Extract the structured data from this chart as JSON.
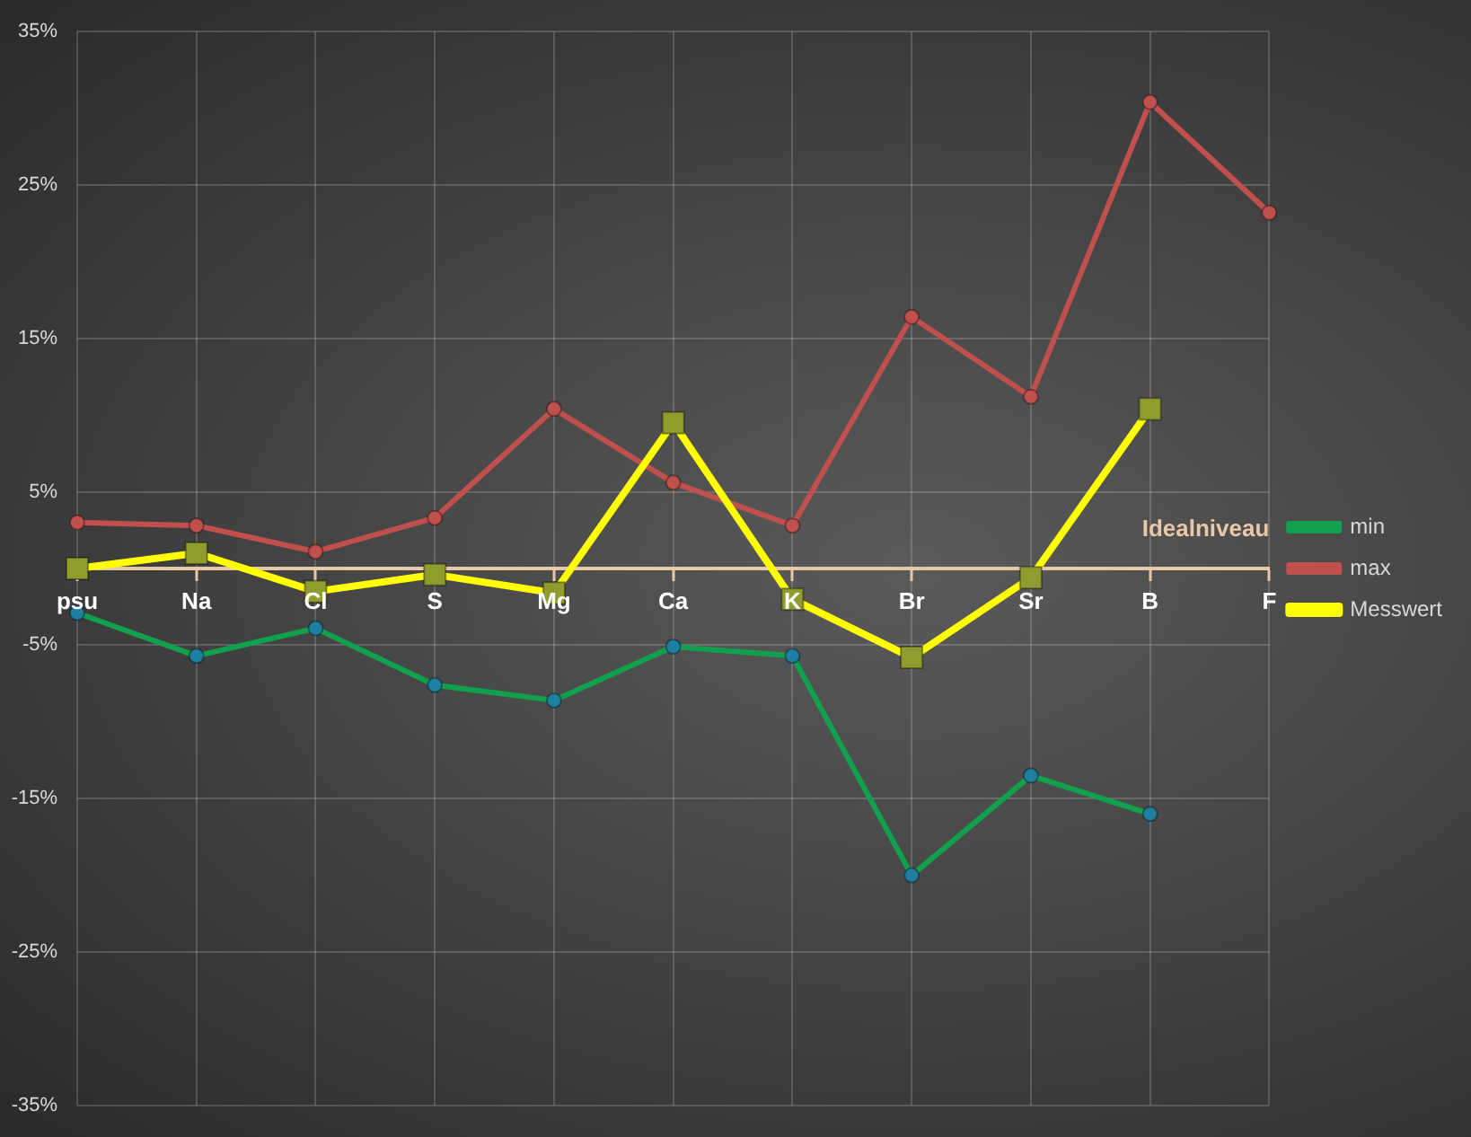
{
  "chart_data": {
    "type": "line",
    "categories": [
      "psu",
      "Na",
      "Cl",
      "S",
      "Mg",
      "Ca",
      "K",
      "Br",
      "Sr",
      "B",
      "F"
    ],
    "series": [
      {
        "name": "min",
        "color": "#11a04e",
        "marker": "circle",
        "colors": [
          "#1f7fa0",
          "#1f7fa0",
          "#1f7fa0",
          "#1f7fa0",
          "#1f7fa0",
          "#1f7fa0",
          "#1f7fa0",
          "#1f7fa0",
          "#1f7fa0",
          "#1f7fa0",
          "#1f7fa0"
        ],
        "values": [
          -2.9,
          -5.7,
          -3.9,
          -7.6,
          -8.6,
          -5.1,
          -5.7,
          -20.0,
          -13.5,
          -16.0,
          null
        ]
      },
      {
        "name": "max",
        "color": "#c0504d",
        "marker": "circle",
        "values": [
          3.0,
          2.8,
          1.1,
          3.3,
          10.4,
          5.6,
          2.8,
          16.4,
          11.2,
          30.4,
          23.2
        ]
      },
      {
        "name": "Messwert",
        "color": "#ffff00",
        "marker": "square",
        "colors": [
          "#8f9c2e",
          "#8f9c2e",
          "#8f9c2e",
          "#8f9c2e",
          "#8f9c2e",
          "#8f9c2e",
          "#8f9c2e",
          "#8f9c2e",
          "#8f9c2e",
          "#8f9c2e",
          "#8f9c2e"
        ],
        "values": [
          0,
          1.0,
          -1.5,
          -0.4,
          -1.6,
          9.5,
          -2.0,
          -5.8,
          -0.6,
          10.4,
          null
        ]
      }
    ],
    "ylim": [
      -35,
      35
    ],
    "yticks": [
      {
        "value": -35,
        "label": "-35%"
      },
      {
        "value": -25,
        "label": "-25%"
      },
      {
        "value": -15,
        "label": "-15%"
      },
      {
        "value": -5,
        "label": "-5%"
      },
      {
        "value": 5,
        "label": "5%"
      },
      {
        "value": 15,
        "label": "15%"
      },
      {
        "value": 25,
        "label": "25%"
      },
      {
        "value": 35,
        "label": "35%"
      }
    ],
    "grid": true,
    "legend": "right",
    "annotations": [
      "Idealniveau"
    ]
  }
}
